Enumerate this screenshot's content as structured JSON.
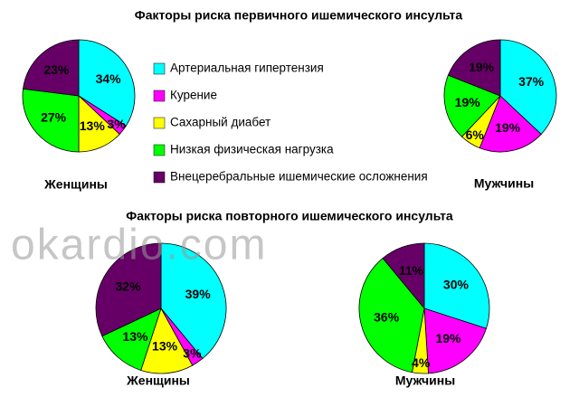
{
  "headings": [
    "Факторы риска первичного ишемического инсульта",
    "Факторы риска повторного ишемического инсульта"
  ],
  "watermark": "okardio.com",
  "legend": {
    "categories": [
      "Артериальная гипертензия",
      "Курение",
      "Сахарный диабет",
      "Низкая физическая нагрузка",
      "Внецеребральные ишемические осложнения"
    ],
    "colors": [
      "#00ffff",
      "#ff00ff",
      "#ffff00",
      "#00ff00",
      "#660066"
    ]
  },
  "chart_data": [
    {
      "type": "pie",
      "label": "Женщины",
      "values": [
        34,
        3,
        13,
        27,
        23
      ],
      "value_labels": [
        "34%",
        "3%",
        "13%",
        "27%",
        "23%"
      ]
    },
    {
      "type": "pie",
      "label": "Мужчины",
      "values": [
        37,
        19,
        6,
        19,
        19
      ],
      "value_labels": [
        "37%",
        "19%",
        "6%",
        "19%",
        "19%"
      ]
    },
    {
      "type": "pie",
      "label": "Женщины",
      "values": [
        39,
        3,
        13,
        13,
        32
      ],
      "value_labels": [
        "39%",
        "3%",
        "13%",
        "13%",
        "32%"
      ]
    },
    {
      "type": "pie",
      "label": "Мужчины",
      "values": [
        30,
        19,
        4,
        36,
        11
      ],
      "value_labels": [
        "30%",
        "19%",
        "4%",
        "36%",
        "11%"
      ]
    }
  ]
}
